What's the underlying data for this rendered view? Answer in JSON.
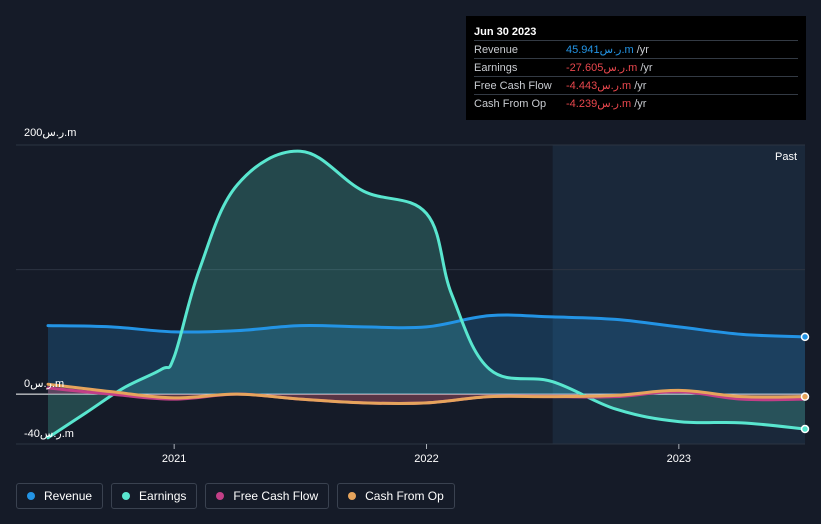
{
  "tooltip": {
    "date": "Jun 30 2023",
    "rows": [
      {
        "label": "Revenue",
        "value": "45.941ر.س.m",
        "unit": "/yr",
        "color": "#2394e5"
      },
      {
        "label": "Earnings",
        "value": "-27.605ر.س.m",
        "unit": "/yr",
        "color": "#e8474d"
      },
      {
        "label": "Free Cash Flow",
        "value": "-4.443ر.س.m",
        "unit": "/yr",
        "color": "#e8474d"
      },
      {
        "label": "Cash From Op",
        "value": "-4.239ر.س.m",
        "unit": "/yr",
        "color": "#e8474d"
      }
    ]
  },
  "legend": [
    {
      "label": "Revenue",
      "color": "#2394e5"
    },
    {
      "label": "Earnings",
      "color": "#59e6cf"
    },
    {
      "label": "Free Cash Flow",
      "color": "#c23f87"
    },
    {
      "label": "Cash From Op",
      "color": "#e6a45c"
    }
  ],
  "chart_data": {
    "type": "line",
    "past_label": "Past",
    "y_labels": {
      "top": "200ر.س.m",
      "zero": "0ر.س.m",
      "bottom": "-40ر.س.m"
    },
    "ylim": [
      -40,
      200
    ],
    "xlim": [
      2020.5,
      2023.5
    ],
    "x_ticks": [
      {
        "label": "2021",
        "value": 2021.0
      },
      {
        "label": "2022",
        "value": 2022.0
      },
      {
        "label": "2023",
        "value": 2023.0
      }
    ],
    "past_start": 2022.5,
    "series": [
      {
        "name": "Revenue",
        "color": "#2394e5",
        "x": [
          2020.5,
          2020.75,
          2021.0,
          2021.25,
          2021.5,
          2021.75,
          2022.0,
          2022.25,
          2022.5,
          2022.75,
          2023.0,
          2023.25,
          2023.5
        ],
        "y": [
          55,
          54,
          50,
          51,
          55,
          54,
          54,
          63,
          62,
          60,
          54,
          48,
          46
        ]
      },
      {
        "name": "Earnings",
        "color": "#59e6cf",
        "x": [
          2020.5,
          2020.65,
          2020.8,
          2020.95,
          2021.0,
          2021.1,
          2021.25,
          2021.5,
          2021.75,
          2022.0,
          2022.1,
          2022.25,
          2022.5,
          2022.75,
          2023.0,
          2023.25,
          2023.5
        ],
        "y": [
          -35,
          -15,
          5,
          20,
          30,
          100,
          168,
          195,
          163,
          145,
          80,
          20,
          10,
          -12,
          -22,
          -23,
          -28
        ]
      },
      {
        "name": "Free Cash Flow",
        "color": "#c23f87",
        "x": [
          2020.5,
          2020.75,
          2021.0,
          2021.25,
          2021.5,
          2021.75,
          2022.0,
          2022.25,
          2022.5,
          2022.75,
          2023.0,
          2023.25,
          2023.5
        ],
        "y": [
          5,
          0,
          -4,
          0,
          -4,
          -7,
          -7,
          -2,
          -2,
          -2,
          2,
          -4,
          -4
        ]
      },
      {
        "name": "Cash From Op",
        "color": "#e6a45c",
        "x": [
          2020.5,
          2020.75,
          2021.0,
          2021.25,
          2021.5,
          2021.75,
          2022.0,
          2022.25,
          2022.5,
          2022.75,
          2023.0,
          2023.25,
          2023.5
        ],
        "y": [
          8,
          2,
          -3,
          0,
          -4,
          -7,
          -7,
          -2,
          -2,
          -1,
          3,
          -2,
          -2
        ]
      }
    ]
  }
}
